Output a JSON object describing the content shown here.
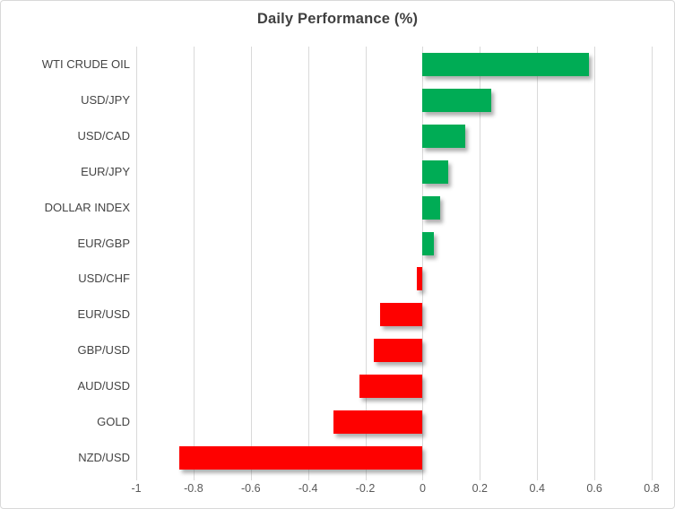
{
  "colors": {
    "positive": "#00ac55",
    "negative": "#fe0100",
    "gridline": "#d9d9d9",
    "title_text": "#404040",
    "axis_text": "#595959",
    "category_text": "#444444",
    "border": "#d9d9d9",
    "background": "#ffffff"
  },
  "chart_data": {
    "type": "bar",
    "orientation": "horizontal",
    "title": "Daily Performance (%)",
    "categories": [
      "WTI CRUDE OIL",
      "USD/JPY",
      "USD/CAD",
      "EUR/JPY",
      "DOLLAR INDEX",
      "EUR/GBP",
      "USD/CHF",
      "EUR/USD",
      "GBP/USD",
      "AUD/USD",
      "GOLD",
      "NZD/USD"
    ],
    "values": [
      0.58,
      0.24,
      0.15,
      0.09,
      0.06,
      0.04,
      -0.02,
      -0.15,
      -0.17,
      -0.22,
      -0.31,
      -0.85
    ],
    "xlabel": "",
    "ylabel": "",
    "xlim": [
      -1,
      0.8
    ],
    "xticks": [
      -1,
      -0.8,
      -0.6,
      -0.4,
      -0.2,
      0,
      0.2,
      0.4,
      0.6,
      0.8
    ],
    "xtick_labels": [
      "-1",
      "-0.8",
      "-0.6",
      "-0.4",
      "-0.2",
      "0",
      "0.2",
      "0.4",
      "0.6",
      "0.8"
    ],
    "grid": true,
    "legend": false
  }
}
